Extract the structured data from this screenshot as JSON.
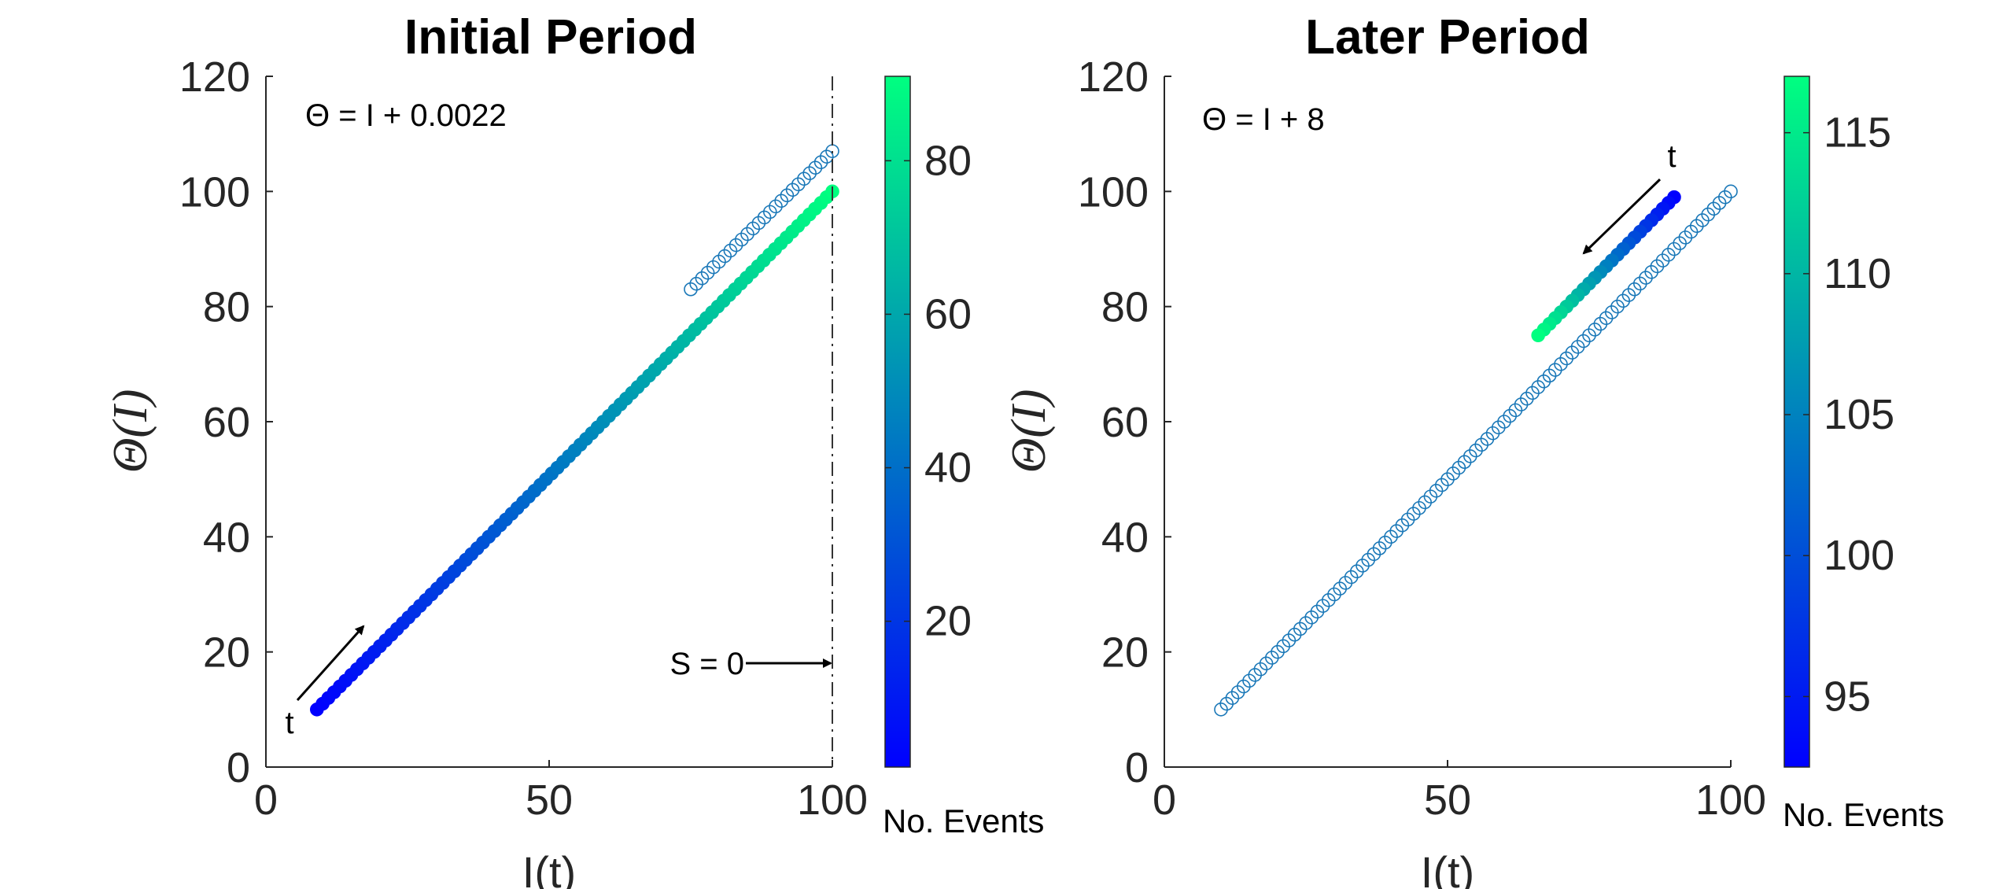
{
  "chart_data": [
    {
      "type": "scatter",
      "title": "Initial Period",
      "xlabel": "I(t)",
      "ylabel": "Θ(I)",
      "xlim": [
        0,
        100
      ],
      "ylim": [
        0,
        120
      ],
      "xticks": [
        "0",
        "50",
        "100"
      ],
      "yticks": [
        "0",
        "20",
        "40",
        "60",
        "80",
        "100",
        "120"
      ],
      "equation": "Θ = I + 0.0022",
      "arrow_label": "t",
      "boundary_label": "S = 0",
      "boundary_x": 100,
      "colorbar": {
        "label": "No. Events",
        "min": 1,
        "max": 91,
        "ticks": [
          "20",
          "40",
          "60",
          "80"
        ],
        "tick_values": [
          20,
          40,
          60,
          80
        ]
      },
      "series": [
        {
          "style": "filled, colored by No. Events",
          "x_start": 9,
          "x_end": 100,
          "y_start": 10,
          "y_end": 100,
          "count": 91,
          "color_start": 1,
          "color_end": 91
        },
        {
          "style": "open circles",
          "x_start": 75,
          "x_end": 100,
          "y_start": 83,
          "y_end": 107,
          "count": 26
        }
      ]
    },
    {
      "type": "scatter",
      "title": "Later Period",
      "xlabel": "I(t)",
      "ylabel": "Θ(I)",
      "xlim": [
        0,
        100
      ],
      "ylim": [
        0,
        120
      ],
      "xticks": [
        "0",
        "50",
        "100"
      ],
      "yticks": [
        "0",
        "20",
        "40",
        "60",
        "80",
        "100",
        "120"
      ],
      "equation": "Θ = I + 8",
      "arrow_label": "t",
      "colorbar": {
        "label": "No. Events",
        "min": 92.5,
        "max": 117,
        "ticks": [
          "95",
          "100",
          "105",
          "110",
          "115"
        ],
        "tick_values": [
          95,
          100,
          105,
          110,
          115
        ]
      },
      "series": [
        {
          "style": "open circles",
          "x_start": 10,
          "x_end": 100,
          "y_start": 10,
          "y_end": 100,
          "count": 91
        },
        {
          "style": "filled, colored by No. Events",
          "x_start": 90,
          "x_end": 66,
          "y_start": 99,
          "y_end": 75,
          "count": 25,
          "color_start": 92.5,
          "color_end": 117
        }
      ]
    }
  ]
}
